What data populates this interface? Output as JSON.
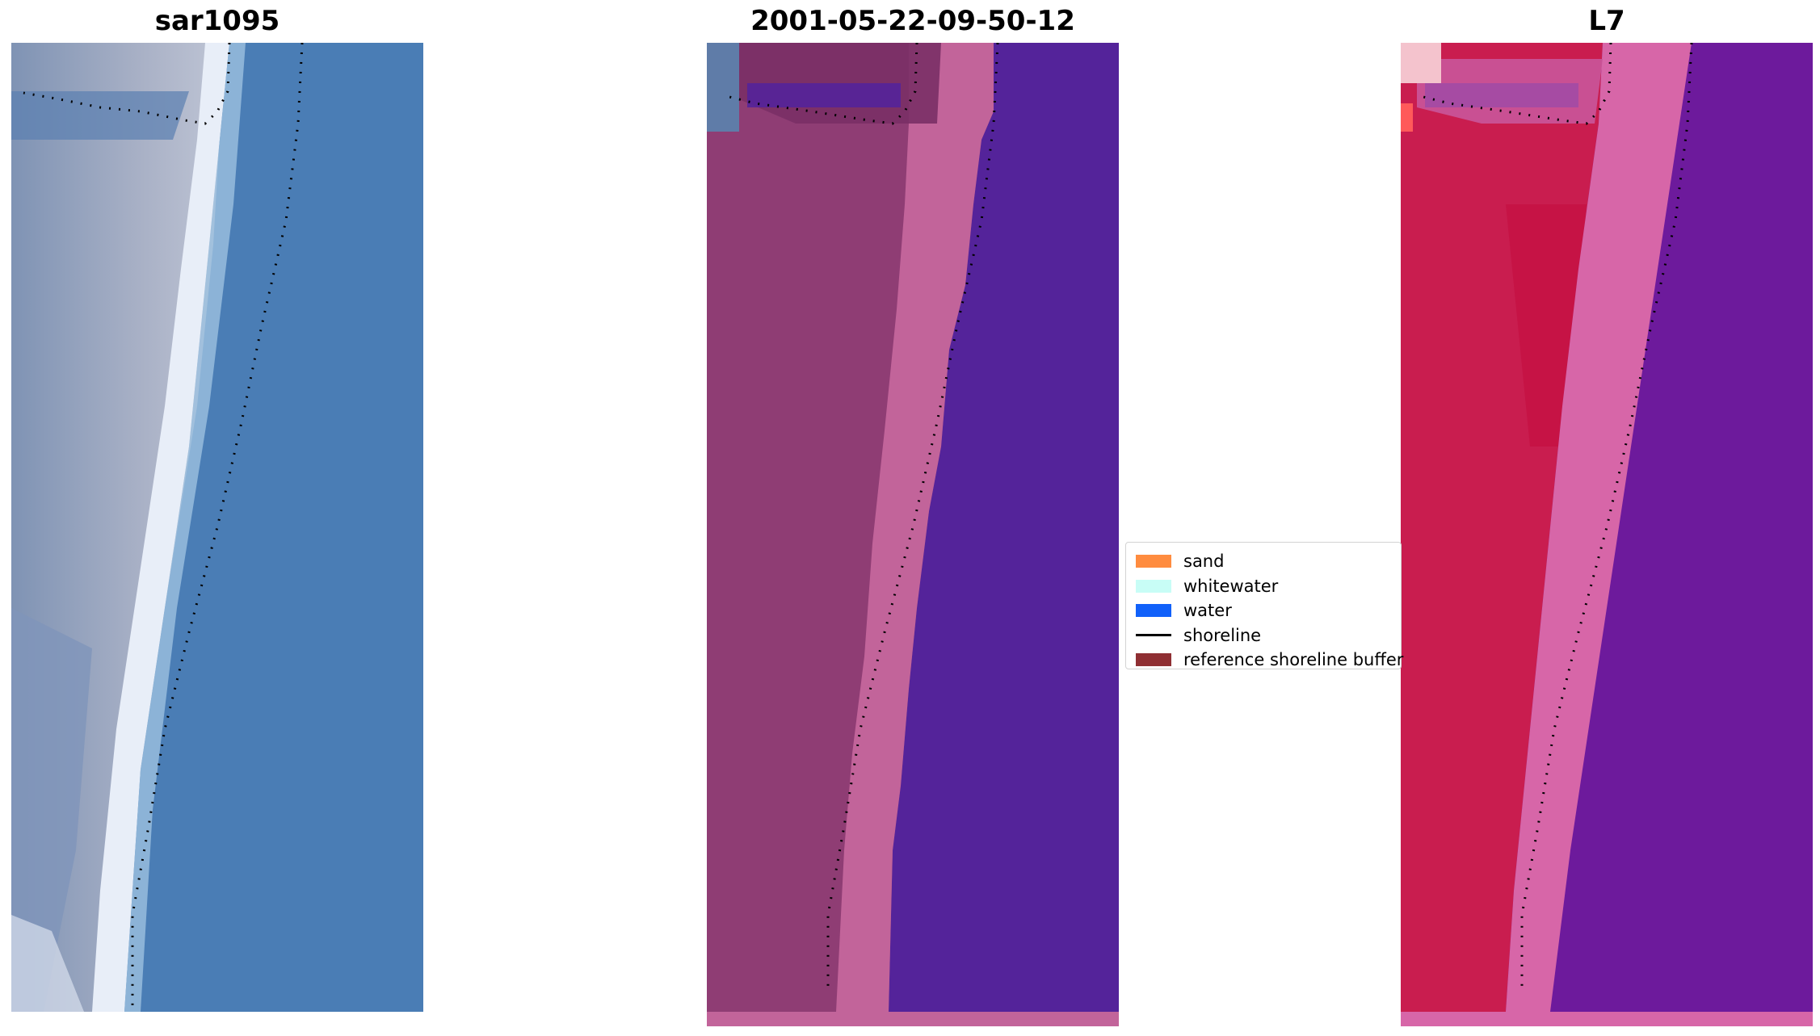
{
  "panels": [
    {
      "title": "sar1095"
    },
    {
      "title": "2001-05-22-09-50-12"
    },
    {
      "title": "L7"
    }
  ],
  "legend": {
    "items": [
      {
        "label": "sand",
        "color": "#ff8c3f"
      },
      {
        "label": "whitewater",
        "color": "#c8fdf6"
      },
      {
        "label": "water",
        "color": "#1161fa"
      },
      {
        "label": "shoreline",
        "color": "#000000"
      },
      {
        "label": "reference shoreline buffer",
        "color": "#8f2f33"
      }
    ]
  },
  "colors": {
    "sar_water": "#4a7db5",
    "sar_land": "#8aa0bd",
    "sar_surf": "#e8eef8",
    "class_ocean": "#54239a",
    "class_land": "#8f3d74",
    "class_buffer": "#c2649a",
    "ndwi_land": "#c91d4f",
    "ndwi_water": "#6d1a9c",
    "ndwi_edge": "#d766a8"
  }
}
